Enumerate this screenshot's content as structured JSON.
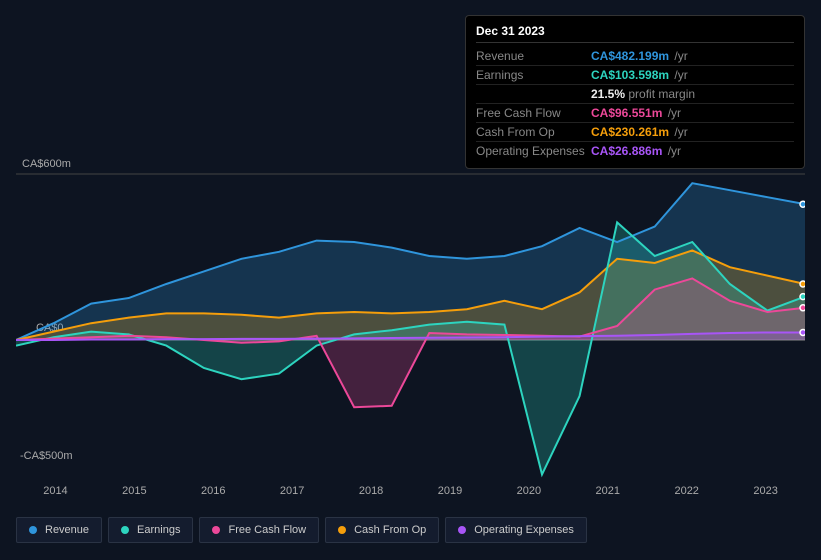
{
  "tooltip": {
    "date": "Dec 31 2023",
    "rows": [
      {
        "label": "Revenue",
        "value": "CA$482.199m",
        "unit": "/yr",
        "color": "#2f95dc"
      },
      {
        "label": "Earnings",
        "value": "CA$103.598m",
        "unit": "/yr",
        "color": "#2dd4bf",
        "sub_value": "21.5%",
        "sub_label": " profit margin"
      },
      {
        "label": "Free Cash Flow",
        "value": "CA$96.551m",
        "unit": "/yr",
        "color": "#ec4899"
      },
      {
        "label": "Cash From Op",
        "value": "CA$230.261m",
        "unit": "/yr",
        "color": "#f59e0b"
      },
      {
        "label": "Operating Expenses",
        "value": "CA$26.886m",
        "unit": "/yr",
        "color": "#a855f7"
      }
    ]
  },
  "chart": {
    "y_top_label": "CA$600m",
    "y_zero_label": "CA$0",
    "y_bot_label": "-CA$500m",
    "y_max": 600,
    "y_min": -500,
    "x_labels": [
      "2014",
      "2015",
      "2016",
      "2017",
      "2018",
      "2019",
      "2020",
      "2021",
      "2022",
      "2023"
    ],
    "series": [
      {
        "key": "revenue",
        "name": "Revenue",
        "color": "#2f95dc",
        "points": [
          0,
          60,
          130,
          150,
          200,
          245,
          290,
          315,
          355,
          350,
          330,
          300,
          290,
          300,
          335,
          400,
          350,
          405,
          560,
          535,
          510,
          485
        ]
      },
      {
        "key": "cash_from_op",
        "name": "Cash From Op",
        "color": "#f59e0b",
        "points": [
          0,
          30,
          60,
          80,
          95,
          95,
          90,
          80,
          95,
          100,
          95,
          100,
          110,
          140,
          110,
          170,
          290,
          275,
          320,
          260,
          230,
          200
        ]
      },
      {
        "key": "earnings",
        "name": "Earnings",
        "color": "#2dd4bf",
        "points": [
          -20,
          10,
          30,
          20,
          -20,
          -100,
          -140,
          -120,
          -20,
          20,
          35,
          55,
          65,
          55,
          -480,
          -200,
          420,
          300,
          350,
          200,
          105,
          155
        ]
      },
      {
        "key": "fcf",
        "name": "Free Cash Flow",
        "color": "#ec4899",
        "points": [
          0,
          5,
          10,
          15,
          10,
          0,
          -10,
          -5,
          15,
          -240,
          -235,
          25,
          20,
          18,
          15,
          12,
          50,
          180,
          220,
          140,
          100,
          115
        ]
      },
      {
        "key": "opex",
        "name": "Operating Expenses",
        "color": "#a855f7",
        "points": [
          0,
          0,
          2,
          2,
          3,
          3,
          4,
          4,
          5,
          6,
          7,
          8,
          9,
          10,
          12,
          14,
          15,
          18,
          22,
          25,
          27,
          27
        ]
      }
    ],
    "grid_color": "#444",
    "baseline_color": "#888",
    "background": "#0d1421"
  },
  "legend": [
    {
      "name": "Revenue",
      "color": "#2f95dc"
    },
    {
      "name": "Earnings",
      "color": "#2dd4bf"
    },
    {
      "name": "Free Cash Flow",
      "color": "#ec4899"
    },
    {
      "name": "Cash From Op",
      "color": "#f59e0b"
    },
    {
      "name": "Operating Expenses",
      "color": "#a855f7"
    }
  ]
}
